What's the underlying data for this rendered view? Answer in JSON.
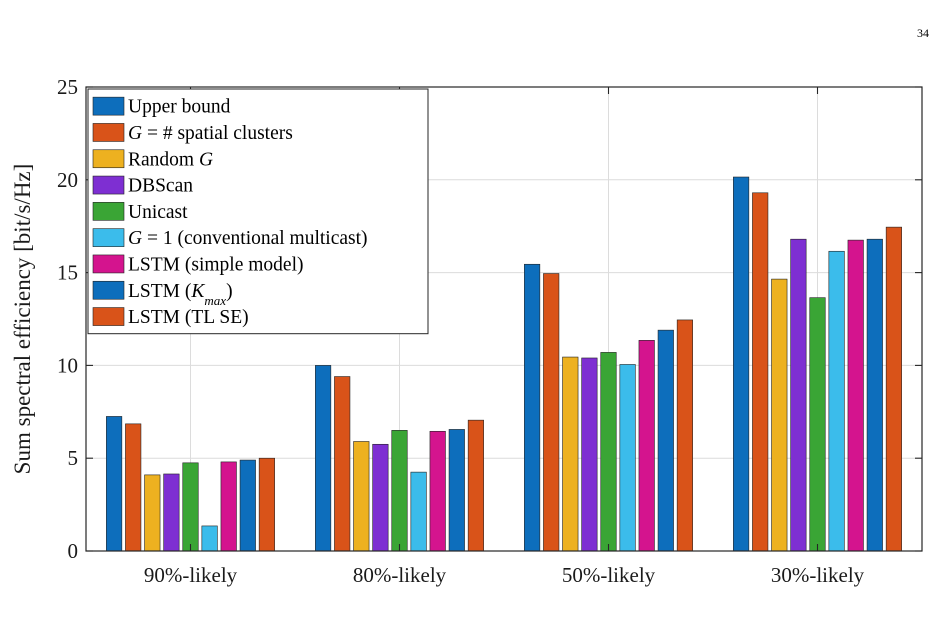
{
  "page": {
    "number": "34"
  },
  "colors": {
    "axis": "#262626",
    "grid": "#dcdcdc",
    "bar_outline": "#222222"
  },
  "chart_data": {
    "type": "bar",
    "title": "",
    "xlabel": "",
    "ylabel": "Sum spectral efficiency [bit/s/Hz]",
    "ylim": [
      0,
      25
    ],
    "yticks": [
      0,
      5,
      10,
      15,
      20,
      25
    ],
    "grid": true,
    "legend_position": "top-left",
    "categories": [
      "90%-likely",
      "80%-likely",
      "50%-likely",
      "30%-likely"
    ],
    "series": [
      {
        "name": "Upper bound",
        "name_parts": [
          [
            "Upper bound",
            false
          ]
        ],
        "color": "#0d6ebc",
        "values": [
          7.25,
          10.0,
          15.45,
          20.15
        ]
      },
      {
        "name": "G =  # spatial clusters",
        "name_parts": [
          [
            "G",
            true
          ],
          [
            " =  # spatial clusters",
            false
          ]
        ],
        "color": "#d95319",
        "values": [
          6.85,
          9.4,
          14.95,
          19.3
        ]
      },
      {
        "name": "Random G",
        "name_parts": [
          [
            "Random ",
            false
          ],
          [
            "G",
            true
          ]
        ],
        "color": "#edb120",
        "values": [
          4.1,
          5.9,
          10.45,
          14.65
        ]
      },
      {
        "name": "DBScan",
        "name_parts": [
          [
            "DBScan",
            false
          ]
        ],
        "color": "#7e2fd2",
        "values": [
          4.15,
          5.75,
          10.4,
          16.8
        ]
      },
      {
        "name": "Unicast",
        "name_parts": [
          [
            "Unicast",
            false
          ]
        ],
        "color": "#3aa535",
        "values": [
          4.75,
          6.5,
          10.7,
          13.65
        ]
      },
      {
        "name": "G = 1 (conventional multicast)",
        "name_parts": [
          [
            "G",
            true
          ],
          [
            " = 1 (conventional multicast)",
            false
          ]
        ],
        "color": "#3bbceb",
        "values": [
          1.35,
          4.25,
          10.05,
          16.15
        ]
      },
      {
        "name": "LSTM (simple model)",
        "name_parts": [
          [
            "LSTM (simple model)",
            false
          ]
        ],
        "color": "#d4148e",
        "values": [
          4.8,
          6.45,
          11.35,
          16.75
        ]
      },
      {
        "name": "LSTM (Kmax)",
        "name_parts": [
          [
            "LSTM (",
            false
          ],
          [
            "K",
            true
          ],
          [
            "max",
            true,
            "sub"
          ],
          [
            ")",
            false
          ]
        ],
        "color": "#0d6ebc",
        "values": [
          4.9,
          6.55,
          11.9,
          16.8
        ]
      },
      {
        "name": "LSTM (TL SE)",
        "name_parts": [
          [
            "LSTM (TL SE)",
            false
          ]
        ],
        "color": "#d95319",
        "values": [
          5.0,
          7.05,
          12.45,
          17.45
        ]
      }
    ]
  }
}
